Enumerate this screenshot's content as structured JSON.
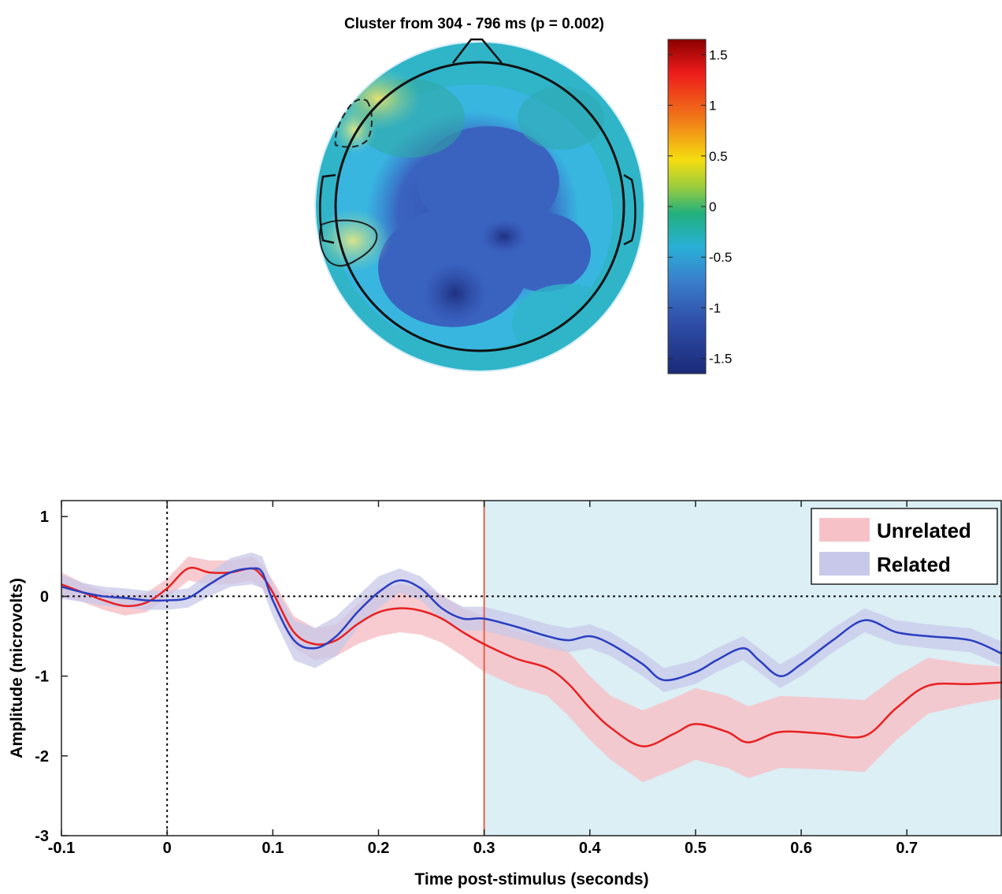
{
  "chart_data": [
    {
      "type": "heatmap",
      "title": "Cluster from 304 - 796 ms (p = 0.002)",
      "colorbar": {
        "range": [
          -1.65,
          1.65
        ],
        "ticks": [
          1.5,
          1,
          0.5,
          0,
          -0.5,
          -1,
          -1.5
        ],
        "tick_labels": [
          "1.5",
          "1",
          "0.5",
          "0",
          "-0.5",
          "-1",
          "-1.5"
        ],
        "colors": [
          "#8b0000",
          "#ee1c1c",
          "#f07a18",
          "#f5dd10",
          "#9ccd3c",
          "#22b07c",
          "#28b0d6",
          "#3a80cc",
          "#3050aa",
          "#1a2a78"
        ]
      },
      "scalp_colors": {
        "rim": "#d6eef8",
        "outer": "#2fb4c8",
        "mid": "#38b6e0",
        "low": "#3a63c0",
        "min": "#243a90",
        "pos": "#c8dc80"
      }
    },
    {
      "type": "line",
      "xlabel": "Time post-stimulus (seconds)",
      "ylabel": "Amplitude (microvolts)",
      "xlim": [
        -0.1,
        0.79
      ],
      "ylim": [
        -3,
        1.2
      ],
      "xticks": [
        -0.1,
        0,
        0.1,
        0.2,
        0.3,
        0.4,
        0.5,
        0.6,
        0.7
      ],
      "xtick_labels": [
        "-0.1",
        "0",
        "0.1",
        "0.2",
        "0.3",
        "0.4",
        "0.5",
        "0.6",
        "0.7"
      ],
      "yticks": [
        1,
        0,
        -1,
        -2,
        -3
      ],
      "ytick_labels": [
        "1",
        "0",
        "-1",
        "-2",
        "-3"
      ],
      "shaded_region": {
        "x": [
          0.3,
          0.79
        ],
        "color": "#dbeff5"
      },
      "zero_lines": {
        "x": 0,
        "y": 0
      },
      "cluster_line_x": 0.3,
      "legend_position": "top-right",
      "series": [
        {
          "name": "Unrelated",
          "color": "#e82020",
          "band_color": "#f6c2c8",
          "x": [
            -0.1,
            -0.08,
            -0.06,
            -0.04,
            -0.02,
            0,
            0.02,
            0.04,
            0.06,
            0.08,
            0.09,
            0.1,
            0.12,
            0.14,
            0.16,
            0.18,
            0.2,
            0.22,
            0.24,
            0.26,
            0.28,
            0.3,
            0.33,
            0.36,
            0.38,
            0.4,
            0.42,
            0.45,
            0.48,
            0.5,
            0.53,
            0.55,
            0.58,
            0.62,
            0.66,
            0.69,
            0.72,
            0.76,
            0.79
          ],
          "y": [
            0.15,
            0.05,
            -0.05,
            -0.12,
            -0.08,
            0.1,
            0.35,
            0.3,
            0.3,
            0.35,
            0.25,
            0.05,
            -0.45,
            -0.6,
            -0.55,
            -0.35,
            -0.2,
            -0.15,
            -0.18,
            -0.28,
            -0.45,
            -0.6,
            -0.78,
            -0.9,
            -1.1,
            -1.4,
            -1.65,
            -1.88,
            -1.72,
            -1.6,
            -1.7,
            -1.83,
            -1.7,
            -1.72,
            -1.75,
            -1.4,
            -1.12,
            -1.1,
            -1.08
          ],
          "band": [
            0.15,
            0.12,
            0.12,
            0.12,
            0.12,
            0.12,
            0.15,
            0.15,
            0.15,
            0.15,
            0.15,
            0.15,
            0.2,
            0.2,
            0.2,
            0.25,
            0.3,
            0.3,
            0.3,
            0.3,
            0.3,
            0.35,
            0.35,
            0.35,
            0.4,
            0.4,
            0.4,
            0.45,
            0.45,
            0.45,
            0.45,
            0.45,
            0.45,
            0.45,
            0.45,
            0.4,
            0.35,
            0.25,
            0.2
          ]
        },
        {
          "name": "Related",
          "color": "#2a3ec0",
          "band_color": "#c8c8ea",
          "x": [
            -0.1,
            -0.08,
            -0.06,
            -0.04,
            -0.02,
            0,
            0.02,
            0.04,
            0.06,
            0.08,
            0.09,
            0.1,
            0.12,
            0.14,
            0.16,
            0.18,
            0.2,
            0.22,
            0.24,
            0.26,
            0.28,
            0.3,
            0.33,
            0.36,
            0.38,
            0.4,
            0.42,
            0.45,
            0.47,
            0.5,
            0.52,
            0.545,
            0.56,
            0.58,
            0.6,
            0.63,
            0.66,
            0.69,
            0.72,
            0.76,
            0.79
          ],
          "y": [
            0.12,
            0.05,
            0,
            -0.02,
            -0.05,
            -0.05,
            -0.02,
            0.15,
            0.3,
            0.35,
            0.3,
            -0.05,
            -0.55,
            -0.65,
            -0.5,
            -0.2,
            0.05,
            0.2,
            0.1,
            -0.15,
            -0.28,
            -0.28,
            -0.38,
            -0.5,
            -0.55,
            -0.5,
            -0.6,
            -0.85,
            -1.05,
            -0.95,
            -0.8,
            -0.65,
            -0.8,
            -1,
            -0.85,
            -0.55,
            -0.3,
            -0.45,
            -0.5,
            -0.55,
            -0.72
          ],
          "band": [
            0.15,
            0.12,
            0.12,
            0.12,
            0.12,
            0.12,
            0.12,
            0.15,
            0.18,
            0.2,
            0.2,
            0.2,
            0.25,
            0.25,
            0.25,
            0.2,
            0.2,
            0.15,
            0.15,
            0.15,
            0.15,
            0.15,
            0.15,
            0.15,
            0.15,
            0.15,
            0.15,
            0.15,
            0.15,
            0.15,
            0.15,
            0.15,
            0.15,
            0.15,
            0.15,
            0.15,
            0.15,
            0.15,
            0.15,
            0.15,
            0.15
          ]
        }
      ]
    }
  ]
}
